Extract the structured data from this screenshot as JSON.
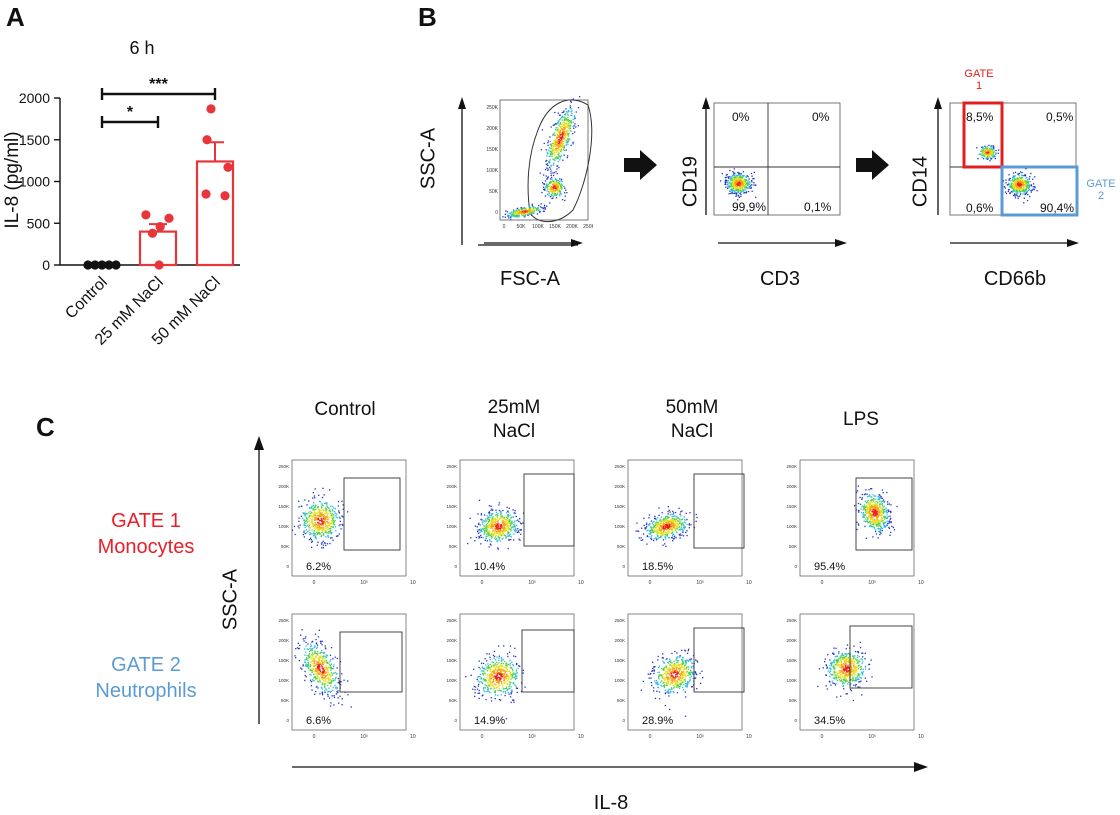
{
  "panels": {
    "a": "A",
    "b": "B",
    "c": "C"
  },
  "chart_data": {
    "type": "bar",
    "title": "6 h",
    "ylabel": "IL-8 (pg/ml)",
    "xlabel": "",
    "ylim": [
      0,
      2000
    ],
    "yticks": [
      "0",
      "500",
      "1000",
      "1500",
      "2000"
    ],
    "categories": [
      "Control",
      "25 mM NaCl",
      "50 mM NaCl"
    ],
    "values": [
      0,
      400,
      1240
    ],
    "errors": [
      0,
      90,
      230
    ],
    "points": [
      [
        0,
        0,
        0,
        0,
        0
      ],
      [
        600,
        560,
        460,
        380,
        0
      ],
      [
        1870,
        1500,
        1170,
        850,
        830
      ]
    ],
    "significance": [
      {
        "label": "*",
        "from": "Control",
        "to": "25 mM NaCl"
      },
      {
        "label": "***",
        "from": "Control",
        "to": "50 mM NaCl"
      }
    ],
    "colors": {
      "control": "#111111",
      "treated": "#e8353a"
    }
  },
  "panel_b": {
    "plot1": {
      "xlabel": "FSC-A",
      "ylabel": "SSC-A",
      "xticks": [
        "0",
        "50K",
        "100K",
        "150K",
        "200K",
        "250K"
      ],
      "yticks": [
        "250K",
        "200K",
        "150K",
        "100K",
        "50K",
        "0"
      ]
    },
    "plot2": {
      "xlabel": "CD3",
      "ylabel": "CD19",
      "quadrants": {
        "ul": "0%",
        "ur": "0%",
        "ll": "99,9%",
        "lr": "0,1%"
      }
    },
    "plot3": {
      "xlabel": "CD66b",
      "ylabel": "CD14",
      "quadrants": {
        "ul": "8,5%",
        "ur": "0,5%",
        "ll": "0,6%",
        "lr": "90,4%"
      },
      "gate1": "GATE\n1",
      "gate2": "GATE\n2",
      "gate1_color": "#e02020",
      "gate2_color": "#5b9bd5"
    }
  },
  "panel_c": {
    "conditions": [
      "Control",
      "25mM\nNaCl",
      "50mM\nNaCl",
      "LPS"
    ],
    "gates": [
      {
        "name": "GATE 1",
        "cell": "Monocytes",
        "color": "#e8202a",
        "values": [
          "6.2%",
          "10.4%",
          "18.5%",
          "95.4%"
        ]
      },
      {
        "name": "GATE 2",
        "cell": "Neutrophils",
        "color": "#5b9bd5",
        "values": [
          "6.6%",
          "14.9%",
          "28.9%",
          "34.5%"
        ]
      }
    ],
    "yaxis": "SSC-A",
    "xaxis": "IL-8",
    "yticks": [
      "250K",
      "200K",
      "150K",
      "100K",
      "50K",
      "0"
    ],
    "xticks": [
      "0",
      "10³",
      "10⁴"
    ]
  }
}
